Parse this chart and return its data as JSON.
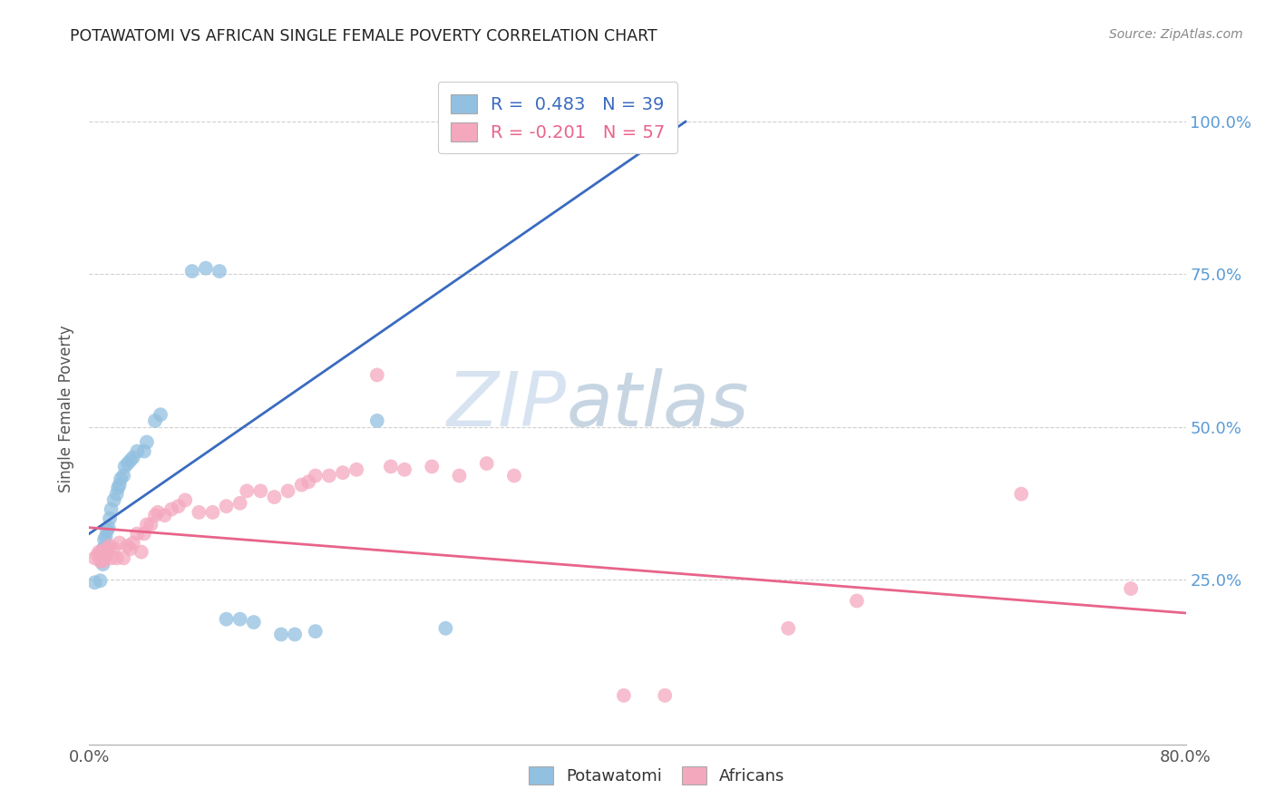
{
  "title": "POTAWATOMI VS AFRICAN SINGLE FEMALE POVERTY CORRELATION CHART",
  "source": "Source: ZipAtlas.com",
  "ylabel": "Single Female Poverty",
  "xlim": [
    0.0,
    0.8
  ],
  "ylim": [
    -0.02,
    1.08
  ],
  "blue_R": 0.483,
  "blue_N": 39,
  "pink_R": -0.201,
  "pink_N": 57,
  "blue_color": "#92c0e0",
  "pink_color": "#f4a8be",
  "blue_line_color": "#3a6bbf",
  "pink_line_color": "#e8648a",
  "watermark_zip": "ZIP",
  "watermark_atlas": "atlas",
  "blue_line_x0": 0.0,
  "blue_line_y0": 0.325,
  "blue_line_x1": 0.435,
  "blue_line_y1": 1.0,
  "pink_line_x0": 0.0,
  "pink_line_y0": 0.335,
  "pink_line_x1": 0.8,
  "pink_line_y1": 0.195,
  "potawatomi_x": [
    0.004,
    0.008,
    0.01,
    0.01,
    0.01,
    0.011,
    0.012,
    0.013,
    0.014,
    0.015,
    0.016,
    0.018,
    0.02,
    0.021,
    0.022,
    0.023,
    0.025,
    0.026,
    0.028,
    0.03,
    0.032,
    0.035,
    0.04,
    0.042,
    0.048,
    0.052,
    0.075,
    0.085,
    0.095,
    0.1,
    0.11,
    0.12,
    0.14,
    0.15,
    0.165,
    0.21,
    0.26,
    0.35,
    0.36
  ],
  "potawatomi_y": [
    0.245,
    0.248,
    0.275,
    0.285,
    0.3,
    0.315,
    0.32,
    0.33,
    0.335,
    0.35,
    0.365,
    0.38,
    0.39,
    0.4,
    0.405,
    0.415,
    0.42,
    0.435,
    0.44,
    0.445,
    0.45,
    0.46,
    0.46,
    0.475,
    0.51,
    0.52,
    0.755,
    0.76,
    0.755,
    0.185,
    0.185,
    0.18,
    0.16,
    0.16,
    0.165,
    0.51,
    0.17,
    1.0,
    1.0
  ],
  "africans_x": [
    0.004,
    0.006,
    0.007,
    0.008,
    0.009,
    0.01,
    0.011,
    0.012,
    0.013,
    0.014,
    0.015,
    0.016,
    0.018,
    0.02,
    0.022,
    0.025,
    0.028,
    0.03,
    0.032,
    0.035,
    0.038,
    0.04,
    0.042,
    0.045,
    0.048,
    0.05,
    0.055,
    0.06,
    0.065,
    0.07,
    0.08,
    0.09,
    0.1,
    0.11,
    0.115,
    0.125,
    0.135,
    0.145,
    0.155,
    0.16,
    0.165,
    0.175,
    0.185,
    0.195,
    0.21,
    0.22,
    0.23,
    0.25,
    0.27,
    0.29,
    0.31,
    0.39,
    0.42,
    0.51,
    0.56,
    0.68,
    0.76
  ],
  "africans_y": [
    0.285,
    0.29,
    0.295,
    0.28,
    0.295,
    0.28,
    0.285,
    0.3,
    0.295,
    0.3,
    0.305,
    0.285,
    0.3,
    0.285,
    0.31,
    0.285,
    0.305,
    0.3,
    0.31,
    0.325,
    0.295,
    0.325,
    0.34,
    0.34,
    0.355,
    0.36,
    0.355,
    0.365,
    0.37,
    0.38,
    0.36,
    0.36,
    0.37,
    0.375,
    0.395,
    0.395,
    0.385,
    0.395,
    0.405,
    0.41,
    0.42,
    0.42,
    0.425,
    0.43,
    0.585,
    0.435,
    0.43,
    0.435,
    0.42,
    0.44,
    0.42,
    0.06,
    0.06,
    0.17,
    0.215,
    0.39,
    0.235
  ]
}
